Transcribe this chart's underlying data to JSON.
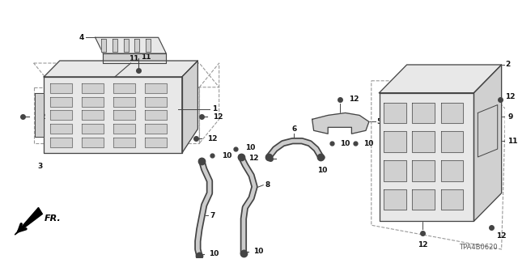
{
  "background_color": "#ffffff",
  "diagram_id": "TPA4B0620",
  "fig_width": 6.4,
  "fig_height": 3.2,
  "dpi": 100,
  "component_color": "#444444",
  "text_color": "#111111",
  "line_color": "#555555",
  "fill_color": "#d0d0d0",
  "light_fill": "#e8e8e8"
}
